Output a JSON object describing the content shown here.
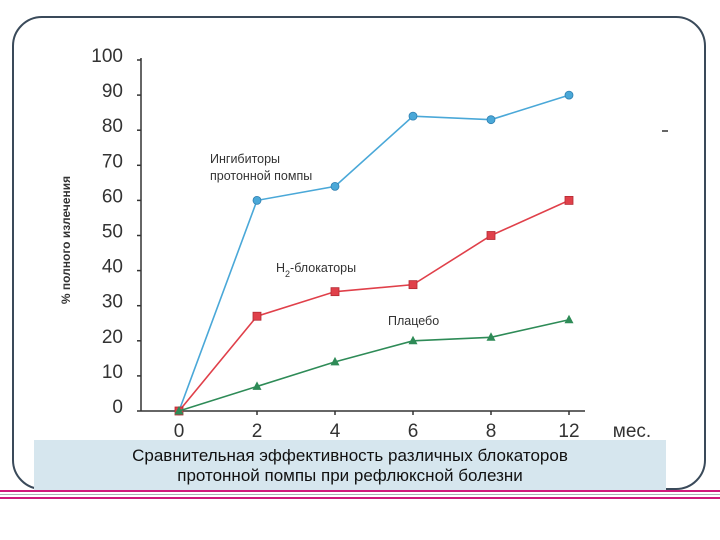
{
  "chart_data": {
    "type": "line",
    "ylabel": "% полного излечения",
    "x": [
      "0",
      "2",
      "4",
      "6",
      "8",
      "12"
    ],
    "x_unit": "мес.",
    "yticks": [
      "100",
      "90",
      "80",
      "70",
      "60",
      "50",
      "40",
      "30",
      "20",
      "10",
      "0"
    ],
    "ylim": [
      0,
      100
    ],
    "grid": false,
    "series": [
      {
        "name": "Ингибиторы протонной помпы",
        "name_lines": [
          "Ингибиторы",
          "протонной помпы"
        ],
        "values": [
          0,
          60,
          64,
          84,
          83,
          90
        ],
        "color": "#4aa8d8",
        "marker": "circle"
      },
      {
        "name": "H2-блокаторы",
        "name_base": "H",
        "name_sub": "2",
        "name_rest": "-блокаторы",
        "values": [
          0,
          27,
          34,
          36,
          50,
          60
        ],
        "color": "#e0404a",
        "marker": "square"
      },
      {
        "name": "Плацебо",
        "values": [
          0,
          7,
          14,
          20,
          21,
          26
        ],
        "color": "#2e8b57",
        "marker": "triangle"
      }
    ]
  },
  "caption": {
    "line1": "Сравнительная эффективность различных блокаторов",
    "line2": "протонной помпы при рефлюксной болезни"
  },
  "colors": {
    "frame": "#3a4a5a",
    "caption_bg": "#d6e6ee",
    "rule_pink": "#d0187a"
  }
}
